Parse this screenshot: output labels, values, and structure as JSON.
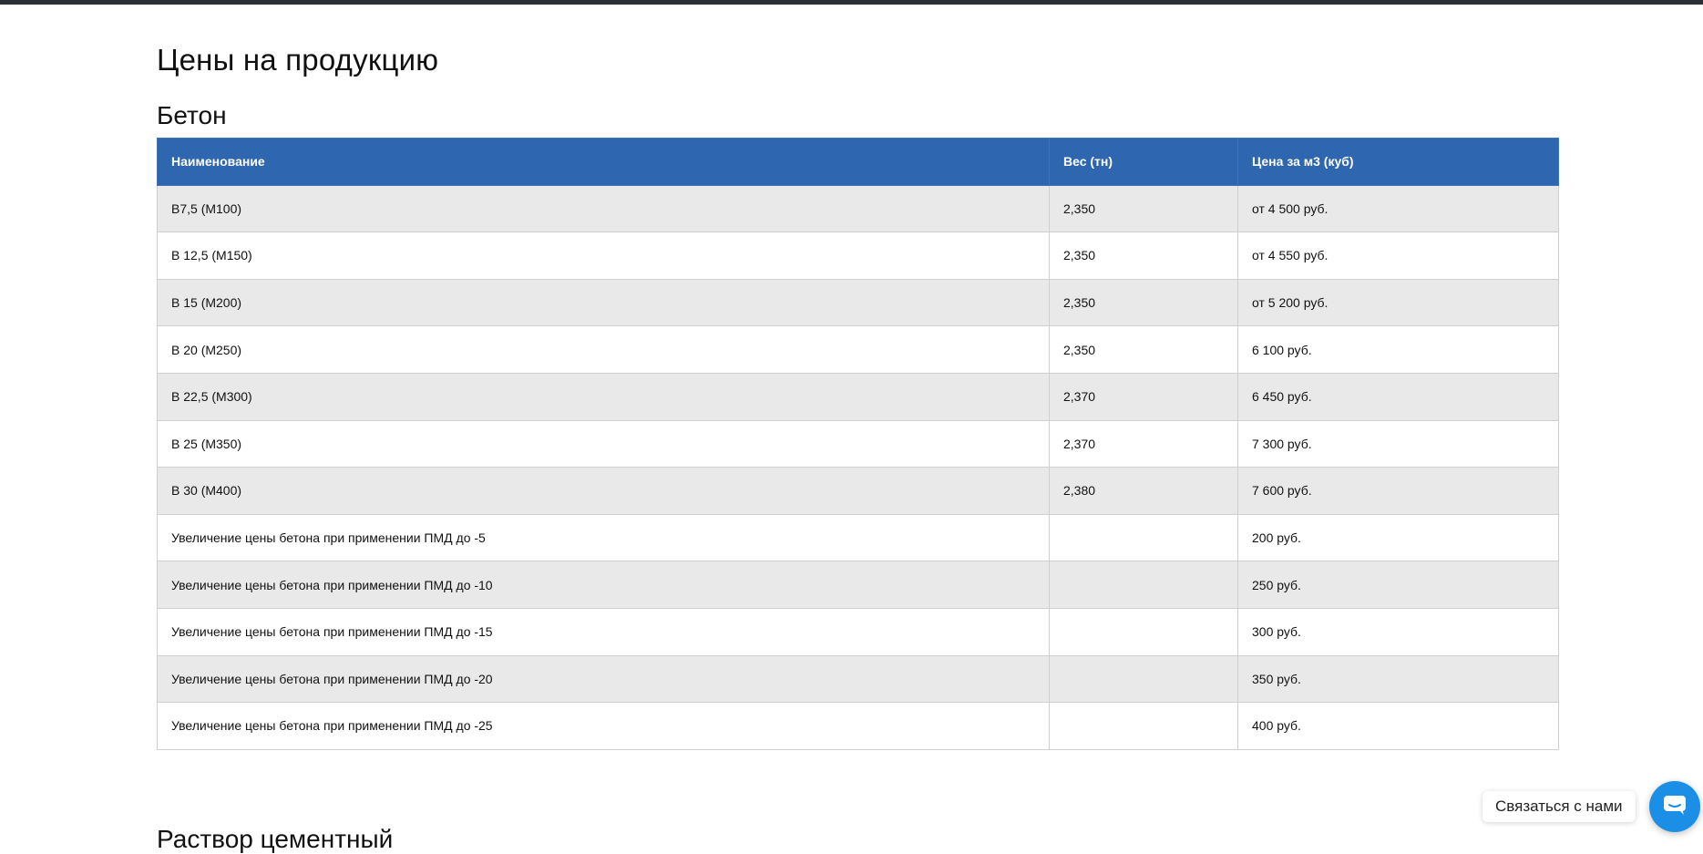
{
  "page": {
    "title": "Цены на продукцию"
  },
  "section": {
    "title": "Бетон",
    "columns": [
      "Наименование",
      "Вес (тн)",
      "Цена за м3 (куб)"
    ],
    "rows": [
      {
        "name": "В7,5 (М100)",
        "weight": "2,350",
        "price": "от 4 500 руб."
      },
      {
        "name": "В 12,5 (М150)",
        "weight": "2,350",
        "price": "от 4 550 руб."
      },
      {
        "name": "В 15 (М200)",
        "weight": "2,350",
        "price": "от 5 200 руб."
      },
      {
        "name": "В 20 (М250)",
        "weight": "2,350",
        "price": "6 100 руб."
      },
      {
        "name": "В 22,5 (М300)",
        "weight": "2,370",
        "price": "6 450 руб."
      },
      {
        "name": "В 25 (М350)",
        "weight": "2,370",
        "price": "7 300 руб."
      },
      {
        "name": "В 30 (М400)",
        "weight": "2,380",
        "price": "7 600 руб."
      },
      {
        "name": "Увеличение цены бетона при применении ПМД до -5",
        "weight": "",
        "price": "200 руб."
      },
      {
        "name": "Увеличение цены бетона при применении ПМД до -10",
        "weight": "",
        "price": "250 руб."
      },
      {
        "name": "Увеличение цены бетона при применении ПМД до -15",
        "weight": "",
        "price": "300 руб."
      },
      {
        "name": "Увеличение цены бетона при применении ПМД до -20",
        "weight": "",
        "price": "350 руб."
      },
      {
        "name": "Увеличение цены бетона при применении ПМД до -25",
        "weight": "",
        "price": "400 руб."
      }
    ]
  },
  "next_section": {
    "title": "Раствор цементный"
  },
  "contact": {
    "label": "Связаться с нами"
  },
  "colors": {
    "header_bg": "#2f66b0",
    "row_alt_bg": "#e9e9e9",
    "chat_button": "#1b8fe6"
  },
  "icons": {
    "chat": "chat-bubble-icon"
  }
}
